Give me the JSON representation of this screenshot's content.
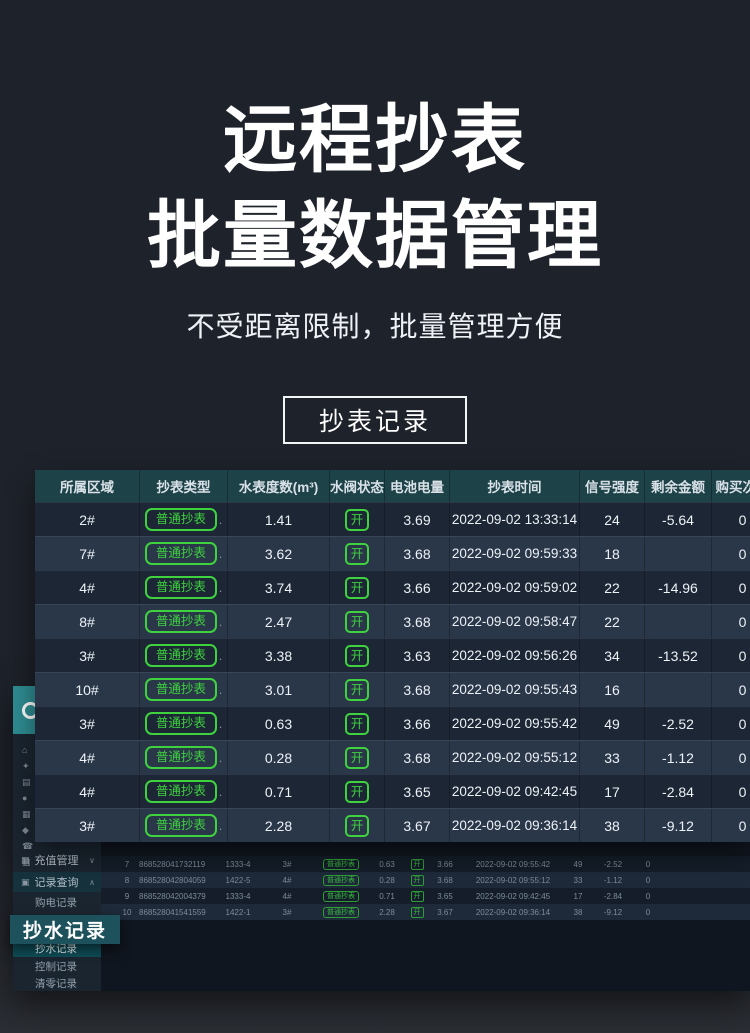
{
  "hero": {
    "title_line1": "远程抄表",
    "title_line2": "批量数据管理",
    "subtitle": "不受距离限制，批量管理方便",
    "tag": "抄表记录"
  },
  "colors": {
    "accent_green": "#3ed23f",
    "header_teal": "#1d4247",
    "callout_teal": "#1d525c",
    "page_background": "#1e222a"
  },
  "table": {
    "headers": [
      "所属区域",
      "抄表类型",
      "水表度数(m³)",
      "水阀状态",
      "电池电量",
      "抄表时间",
      "信号强度",
      "剩余金额",
      "购买次数"
    ],
    "badge_suffix": ".",
    "rows": [
      {
        "area": "2#",
        "type": "普通抄表",
        "reading": "1.41",
        "valve": "开",
        "battery": "3.69",
        "time": "2022-09-02 13:33:14",
        "signal": "24",
        "balance": "-5.64",
        "purchases": "0"
      },
      {
        "area": "7#",
        "type": "普通抄表",
        "reading": "3.62",
        "valve": "开",
        "battery": "3.68",
        "time": "2022-09-02 09:59:33",
        "signal": "18",
        "balance": "",
        "purchases": "0"
      },
      {
        "area": "4#",
        "type": "普通抄表",
        "reading": "3.74",
        "valve": "开",
        "battery": "3.66",
        "time": "2022-09-02 09:59:02",
        "signal": "22",
        "balance": "-14.96",
        "purchases": "0"
      },
      {
        "area": "8#",
        "type": "普通抄表",
        "reading": "2.47",
        "valve": "开",
        "battery": "3.68",
        "time": "2022-09-02 09:58:47",
        "signal": "22",
        "balance": "",
        "purchases": "0"
      },
      {
        "area": "3#",
        "type": "普通抄表",
        "reading": "3.38",
        "valve": "开",
        "battery": "3.63",
        "time": "2022-09-02 09:56:26",
        "signal": "34",
        "balance": "-13.52",
        "purchases": "0"
      },
      {
        "area": "10#",
        "type": "普通抄表",
        "reading": "3.01",
        "valve": "开",
        "battery": "3.68",
        "time": "2022-09-02 09:55:43",
        "signal": "16",
        "balance": "",
        "purchases": "0"
      },
      {
        "area": "3#",
        "type": "普通抄表",
        "reading": "0.63",
        "valve": "开",
        "battery": "3.66",
        "time": "2022-09-02 09:55:42",
        "signal": "49",
        "balance": "-2.52",
        "purchases": "0"
      },
      {
        "area": "4#",
        "type": "普通抄表",
        "reading": "0.28",
        "valve": "开",
        "battery": "3.68",
        "time": "2022-09-02 09:55:12",
        "signal": "33",
        "balance": "-1.12",
        "purchases": "0"
      },
      {
        "area": "4#",
        "type": "普通抄表",
        "reading": "0.71",
        "valve": "开",
        "battery": "3.65",
        "time": "2022-09-02 09:42:45",
        "signal": "17",
        "balance": "-2.84",
        "purchases": "0"
      },
      {
        "area": "3#",
        "type": "普通抄表",
        "reading": "2.28",
        "valve": "开",
        "battery": "3.67",
        "time": "2022-09-02 09:36:14",
        "signal": "38",
        "balance": "-9.12",
        "purchases": "0"
      }
    ]
  },
  "app": {
    "sidebar": {
      "nav_icons": [
        {
          "name": "home-icon",
          "glyph": "⌂"
        },
        {
          "name": "settings-icon",
          "glyph": "✦"
        },
        {
          "name": "monitor-icon",
          "glyph": "▤"
        },
        {
          "name": "user-icon",
          "glyph": "●"
        },
        {
          "name": "document-icon",
          "glyph": "▦"
        },
        {
          "name": "water-drop-icon",
          "glyph": "◆"
        },
        {
          "name": "phone-icon",
          "glyph": "☎"
        },
        {
          "name": "map-icon",
          "glyph": "▥"
        }
      ],
      "menu_recharge": {
        "glyph": "▦",
        "label": "充值管理",
        "chevron": "∨"
      },
      "menu_records": {
        "glyph": "▣",
        "label": "记录查询",
        "chevron": "∧"
      },
      "submenu_items": [
        "购电记录",
        "抄水记录",
        "控制记录",
        "清零记录"
      ],
      "callout_label": "抄水记录"
    },
    "mini_table": {
      "rows": [
        {
          "idx": "7",
          "imei": "868528041732119",
          "addr": "1333-4",
          "area": "3#",
          "type": "普通抄表",
          "reading": "0.63",
          "valve": "开",
          "battery": "3.66",
          "time": "2022-09-02 09:55:42",
          "signal": "49",
          "balance": "-2.52",
          "purchases": "0"
        },
        {
          "idx": "8",
          "imei": "868528042804059",
          "addr": "1422-5",
          "area": "4#",
          "type": "普通抄表",
          "reading": "0.28",
          "valve": "开",
          "battery": "3.68",
          "time": "2022-09-02 09:55:12",
          "signal": "33",
          "balance": "-1.12",
          "purchases": "0"
        },
        {
          "idx": "9",
          "imei": "868528042004379",
          "addr": "1333-4",
          "area": "4#",
          "type": "普通抄表",
          "reading": "0.71",
          "valve": "开",
          "battery": "3.65",
          "time": "2022-09-02 09:42:45",
          "signal": "17",
          "balance": "-2.84",
          "purchases": "0"
        },
        {
          "idx": "10",
          "imei": "868528041541559",
          "addr": "1422-1",
          "area": "3#",
          "type": "普通抄表",
          "reading": "2.28",
          "valve": "开",
          "battery": "3.67",
          "time": "2022-09-02 09:36:14",
          "signal": "38",
          "balance": "-9.12",
          "purchases": "0"
        }
      ]
    }
  }
}
